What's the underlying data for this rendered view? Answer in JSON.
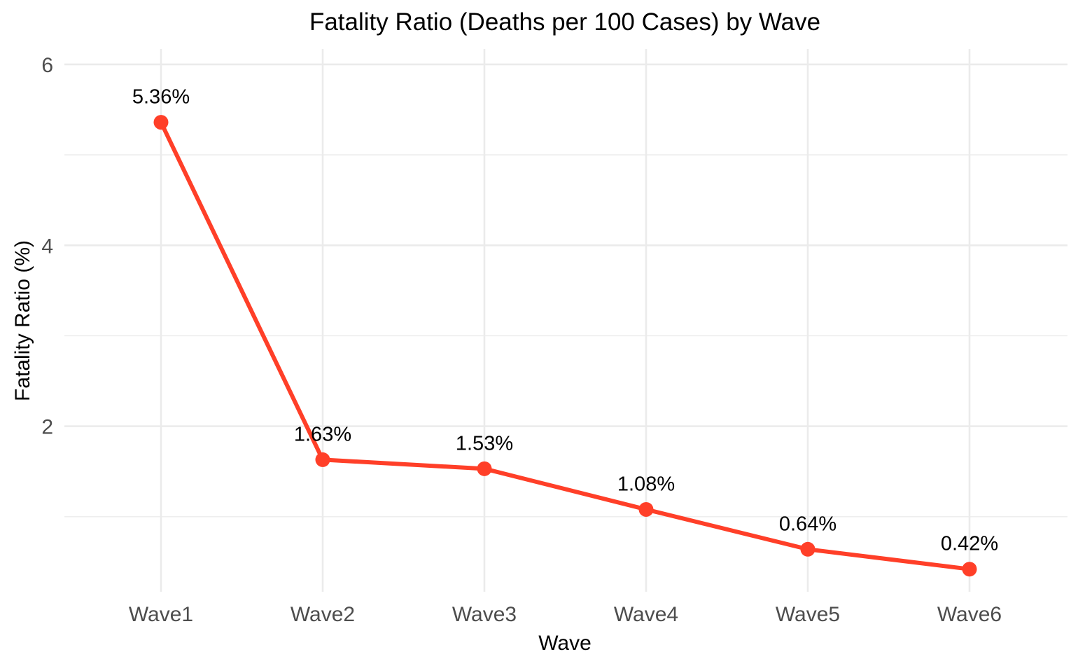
{
  "chart_data": {
    "type": "line",
    "title": "Fatality Ratio (Deaths per 100 Cases) by Wave",
    "xlabel": "Wave",
    "ylabel": "Fatality Ratio (%)",
    "categories": [
      "Wave1",
      "Wave2",
      "Wave3",
      "Wave4",
      "Wave5",
      "Wave6"
    ],
    "values": [
      5.36,
      1.63,
      1.53,
      1.08,
      0.64,
      0.42
    ],
    "data_labels": [
      "5.36%",
      "1.63%",
      "1.53%",
      "1.08%",
      "0.64%",
      "0.42%"
    ],
    "y_ticks": [
      2,
      4,
      6
    ],
    "y_minor_ticks": [
      1,
      3,
      5
    ],
    "ylim": [
      0.17,
      6.17
    ],
    "grid": true,
    "legend": "none",
    "colors": {
      "line": "#ff3f28",
      "point": "#ff3f28",
      "grid": "#ebebeb",
      "background": "#ffffff"
    }
  }
}
